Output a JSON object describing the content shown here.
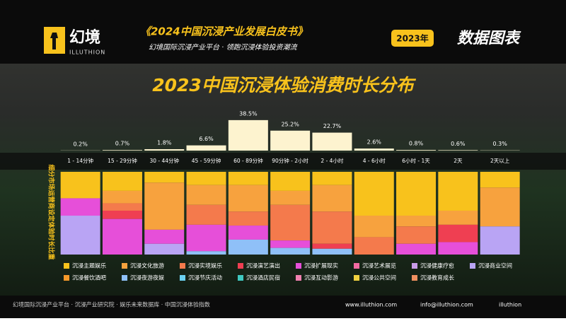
{
  "header": {
    "logo": "幻境",
    "logo_sub": "ILLUTHION",
    "report": "《2024中国沉浸产业发展白皮书》",
    "slogan": "幻境国际沉浸产业平台 · 领跑沉浸体验投资潮流",
    "year": "2023年",
    "tag": "数据图表"
  },
  "chart_data": [
    {
      "type": "bar",
      "title": "2023中国沉浸体验消费时长分布",
      "color": "#fdf3cf",
      "categories": [
        "1 - 14分钟",
        "15 - 29分钟",
        "30 - 44分钟",
        "45 - 59分钟",
        "60 - 89分钟",
        "90分钟 - 2小时",
        "2 - 4小时",
        "4 - 6小时",
        "6小时 - 1天",
        "2天",
        "2天以上"
      ],
      "values": [
        0.2,
        0.7,
        1.8,
        6.6,
        38.5,
        25.2,
        22.7,
        2.6,
        0.8,
        0.6,
        0.3
      ],
      "value_labels": [
        "0.2%",
        "0.7%",
        "1.8%",
        "6.6%",
        "38.5%",
        "25.2%",
        "22.7%",
        "2.6%",
        "0.8%",
        "0.6%",
        "0.3%"
      ]
    },
    {
      "type": "stacked_bar",
      "y_label": "细分市场运营商设定体验时长比重",
      "series": [
        {
          "name": "沉浸主题娱乐",
          "color": "#f8c21c",
          "values": [
            32,
            23,
            13,
            16,
            16,
            23,
            16,
            53,
            53,
            47,
            19
          ]
        },
        {
          "name": "沉浸文化旅游",
          "color": "#f7a23e",
          "values": [
            0,
            15,
            57,
            24,
            32,
            17,
            32,
            26,
            13,
            17,
            47
          ]
        },
        {
          "name": "沉浸实境娱乐",
          "color": "#f47a4c",
          "values": [
            0,
            9,
            0,
            24,
            17,
            43,
            39,
            21,
            21,
            0,
            0
          ]
        },
        {
          "name": "沉浸演艺演出",
          "color": "#ef3f52",
          "values": [
            0,
            10,
            0,
            0,
            0,
            0,
            6,
            0,
            0,
            21,
            0
          ]
        },
        {
          "name": "沉浸扩展现实",
          "color": "#e64fd9",
          "values": [
            21,
            43,
            17,
            32,
            17,
            9,
            0,
            0,
            13,
            15,
            0
          ]
        },
        {
          "name": "沉浸艺术展览",
          "color": "#f46aa2",
          "values": [
            0,
            0,
            0,
            0,
            0,
            0,
            0,
            0,
            0,
            0,
            0
          ]
        },
        {
          "name": "沉浸健康疗愈",
          "color": "#c99be8",
          "values": [
            0,
            0,
            0,
            0,
            0,
            0,
            0,
            0,
            0,
            0,
            0
          ]
        },
        {
          "name": "沉浸商业空间",
          "color": "#b9a4f4",
          "values": [
            47,
            0,
            13,
            0,
            0,
            0,
            0,
            0,
            0,
            0,
            34
          ]
        },
        {
          "name": "沉浸餐饮酒吧",
          "color": "#f5982a",
          "values": [
            0,
            0,
            0,
            0,
            0,
            0,
            0,
            0,
            0,
            0,
            0
          ]
        },
        {
          "name": "沉浸夜游夜娱",
          "color": "#8fc0f8",
          "values": [
            0,
            0,
            0,
            4,
            18,
            8,
            7,
            0,
            0,
            0,
            0
          ]
        },
        {
          "name": "沉浸节庆活动",
          "color": "#6bd0f0",
          "values": [
            0,
            0,
            0,
            0,
            0,
            0,
            0,
            0,
            0,
            0,
            0
          ]
        },
        {
          "name": "沉浸酒店民宿",
          "color": "#40c8c0",
          "values": [
            0,
            0,
            0,
            0,
            0,
            0,
            0,
            0,
            0,
            0,
            0
          ]
        },
        {
          "name": "沉浸互动影游",
          "color": "#f080b0",
          "values": [
            0,
            0,
            0,
            0,
            0,
            0,
            0,
            0,
            0,
            0,
            0
          ]
        },
        {
          "name": "沉浸公共空间",
          "color": "#f0d040",
          "values": [
            0,
            0,
            0,
            0,
            0,
            0,
            0,
            0,
            0,
            0,
            0
          ]
        },
        {
          "name": "沉浸教育成长",
          "color": "#f09060",
          "values": [
            0,
            0,
            0,
            0,
            0,
            0,
            0,
            0,
            0,
            0,
            0
          ]
        }
      ]
    }
  ],
  "footer": {
    "org": "幻境国际沉浸产业平台 · 沉浸产业研究院 · 娱乐未来数据库 · 中国沉浸体验指数",
    "web": "www.illuthion.com",
    "mail": "info@illuthion.com",
    "social": "illuthion"
  }
}
